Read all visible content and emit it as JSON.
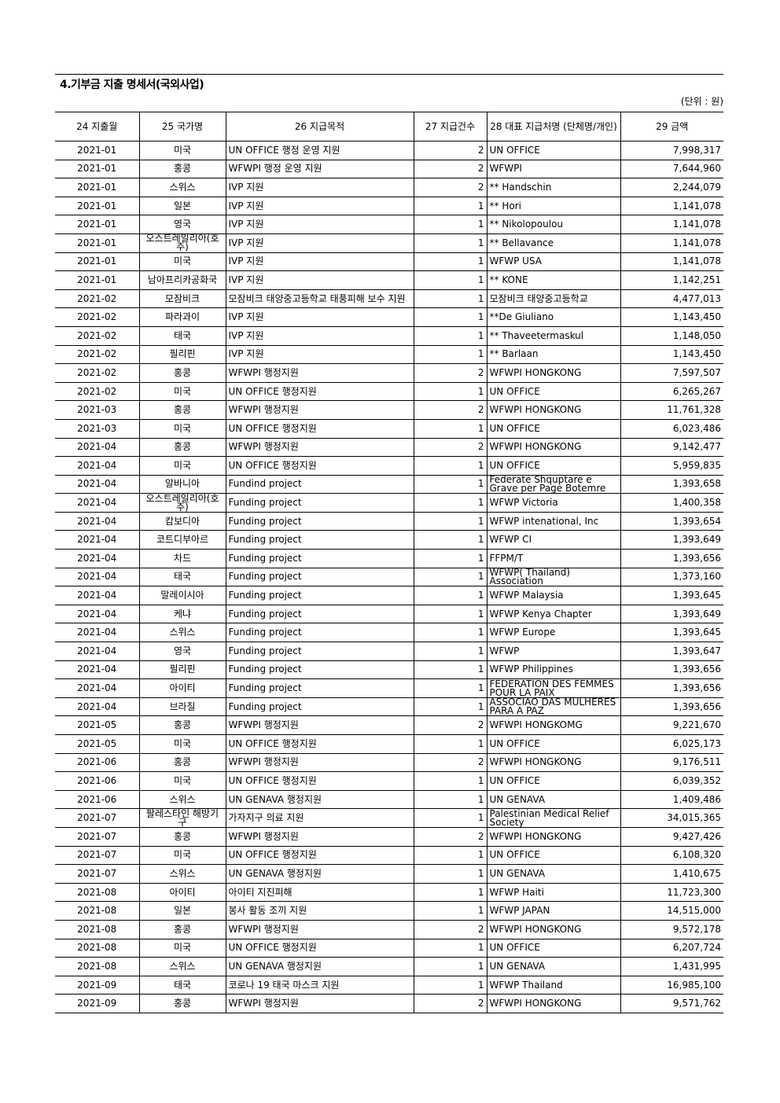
{
  "title": "4.기부금 지출 명세서(국외사업)",
  "unit": "(단위 : 원)",
  "columns": [
    "24 지출월",
    "25 국가명",
    "26 지급목적",
    "27 지급건수",
    "28 대표 지급처명 (단체명/개인)",
    "29 금액"
  ],
  "rows": [
    [
      "2021-01",
      "미국",
      "UN OFFICE 행정 운영 지원",
      "2",
      "UN OFFICE",
      "7,998,317"
    ],
    [
      "2021-01",
      "홍콩",
      "WFWPI 행정 운영 지원",
      "2",
      "WFWPI",
      "7,644,960"
    ],
    [
      "2021-01",
      "스위스",
      "IVP 지원",
      "2",
      "** Handschin",
      "2,244,079"
    ],
    [
      "2021-01",
      "일본",
      "IVP 지원",
      "1",
      "** Hori",
      "1,141,078"
    ],
    [
      "2021-01",
      "영국",
      "IVP 지원",
      "1",
      "** Nikolopoulou",
      "1,141,078"
    ],
    [
      "2021-01",
      "오스트레일리아(호주)",
      "IVP 지원",
      "1",
      "** Bellavance",
      "1,141,078"
    ],
    [
      "2021-01",
      "미국",
      "IVP 지원",
      "1",
      "WFWP USA",
      "1,141,078"
    ],
    [
      "2021-01",
      "남아프리카공화국",
      "IVP 지원",
      "1",
      "** KONE",
      "1,142,251"
    ],
    [
      "2021-02",
      "모잠비크",
      "모잠비크 태양중고등학교 태풍피해 보수 지원",
      "1",
      "모잠비크 태양중고등학교",
      "4,477,013"
    ],
    [
      "2021-02",
      "파라과이",
      "IVP 지원",
      "1",
      "**De Giuliano",
      "1,143,450"
    ],
    [
      "2021-02",
      "태국",
      "IVP 지원",
      "1",
      "** Thaveetermaskul",
      "1,148,050"
    ],
    [
      "2021-02",
      "필리핀",
      "IVP 지원",
      "1",
      "** Barlaan",
      "1,143,450"
    ],
    [
      "2021-02",
      "홍콩",
      "WFWPI 행정지원",
      "2",
      "WFWPI HONGKONG",
      "7,597,507"
    ],
    [
      "2021-02",
      "미국",
      "UN OFFICE 행정지원",
      "1",
      "UN OFFICE",
      "6,265,267"
    ],
    [
      "2021-03",
      "홍콩",
      "WFWPI 행정지원",
      "2",
      "WFWPI HONGKONG",
      "11,761,328"
    ],
    [
      "2021-03",
      "미국",
      "UN OFFICE 행정지원",
      "1",
      "UN OFFICE",
      "6,023,486"
    ],
    [
      "2021-04",
      "홍콩",
      "WFWPI 행정지원",
      "2",
      "WFWPI HONGKONG",
      "9,142,477"
    ],
    [
      "2021-04",
      "미국",
      "UN OFFICE 행정지원",
      "1",
      "UN OFFICE",
      "5,959,835"
    ],
    [
      "2021-04",
      "알바니아",
      "Fundind project",
      "1",
      "Federate Shquptare e Grave per Page Botemre",
      "1,393,658"
    ],
    [
      "2021-04",
      "오스트레일리아(호주)",
      "Funding project",
      "1",
      "WFWP Victoria",
      "1,400,358"
    ],
    [
      "2021-04",
      "캄보디아",
      "Funding project",
      "1",
      "WFWP intenational, Inc",
      "1,393,654"
    ],
    [
      "2021-04",
      "코트디부아르",
      "Funding project",
      "1",
      "WFWP CI",
      "1,393,649"
    ],
    [
      "2021-04",
      "차드",
      "Funding project",
      "1",
      "FFPM/T",
      "1,393,656"
    ],
    [
      "2021-04",
      "태국",
      "Funding project",
      "1",
      "WFWP( Thailand) Association",
      "1,373,160"
    ],
    [
      "2021-04",
      "말레이시아",
      "Funding project",
      "1",
      "WFWP Malaysia",
      "1,393,645"
    ],
    [
      "2021-04",
      "케냐",
      "Funding project",
      "1",
      "WFWP Kenya Chapter",
      "1,393,649"
    ],
    [
      "2021-04",
      "스위스",
      "Funding project",
      "1",
      "WFWP Europe",
      "1,393,645"
    ],
    [
      "2021-04",
      "영국",
      "Funding project",
      "1",
      "WFWP",
      "1,393,647"
    ],
    [
      "2021-04",
      "필리핀",
      "Funding project",
      "1",
      "WFWP Philippines",
      "1,393,656"
    ],
    [
      "2021-04",
      "아이티",
      "Funding project",
      "1",
      "FEDERATION DES FEMMES POUR LA PAIX",
      "1,393,656"
    ],
    [
      "2021-04",
      "브라질",
      "Funding project",
      "1",
      "ASSOCIAO DAS MULHERES PARA A PAZ",
      "1,393,656"
    ],
    [
      "2021-05",
      "홍콩",
      "WFWPI 행정지원",
      "2",
      "WFWPI HONGKOMG",
      "9,221,670"
    ],
    [
      "2021-05",
      "미국",
      "UN OFFICE 행정지원",
      "1",
      "UN OFFICE",
      "6,025,173"
    ],
    [
      "2021-06",
      "홍콩",
      "WFWPI 행정지원",
      "2",
      "WFWPI HONGKONG",
      "9,176,511"
    ],
    [
      "2021-06",
      "미국",
      "UN OFFICE 행정지원",
      "1",
      "UN OFFICE",
      "6,039,352"
    ],
    [
      "2021-06",
      "스위스",
      "UN GENAVA 행정지원",
      "1",
      "UN GENAVA",
      "1,409,486"
    ],
    [
      "2021-07",
      "팔레스타인 해방기구",
      "가자지구 의료 지원",
      "1",
      "Palestinian Medical Relief Society",
      "34,015,365"
    ],
    [
      "2021-07",
      "홍콩",
      "WFWPI 행정지원",
      "2",
      "WFWPI HONGKONG",
      "9,427,426"
    ],
    [
      "2021-07",
      "미국",
      "UN OFFICE 행정지원",
      "1",
      "UN OFFICE",
      "6,108,320"
    ],
    [
      "2021-07",
      "스위스",
      "UN GENAVA 행정지원",
      "1",
      "UN GENAVA",
      "1,410,675"
    ],
    [
      "2021-08",
      "아이티",
      "아이티 지진피해",
      "1",
      "WFWP Haiti",
      "11,723,300"
    ],
    [
      "2021-08",
      "일본",
      "봉사 활동  조끼 지원",
      "1",
      "WFWP JAPAN",
      "14,515,000"
    ],
    [
      "2021-08",
      "홍콩",
      "WFWPI 행정지원",
      "2",
      "WFWPI HONGKONG",
      "9,572,178"
    ],
    [
      "2021-08",
      "미국",
      "UN OFFICE 행정지원",
      "1",
      "UN OFFICE",
      "6,207,724"
    ],
    [
      "2021-08",
      "스위스",
      "UN GENAVA 행정지원",
      "1",
      "UN GENAVA",
      "1,431,995"
    ],
    [
      "2021-09",
      "태국",
      "코로나 19 태국 마스크 지원",
      "1",
      "WFWP Thailand",
      "16,985,100"
    ],
    [
      "2021-09",
      "홍콩",
      "WFWPI 행정지원",
      "2",
      "WFWPI HONGKONG",
      "9,571,762"
    ]
  ]
}
